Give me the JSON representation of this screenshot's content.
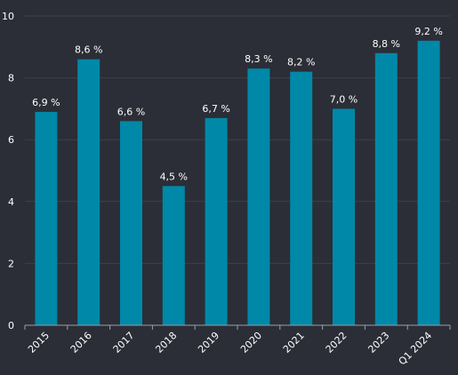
{
  "chart_data": {
    "type": "bar",
    "categories": [
      "2015",
      "2016",
      "2017",
      "2018",
      "2019",
      "2020",
      "2021",
      "2022",
      "2023",
      "Q1 2024"
    ],
    "values": [
      6.9,
      8.6,
      6.6,
      4.5,
      6.7,
      8.3,
      8.2,
      7.0,
      8.8,
      9.2
    ],
    "data_labels": [
      "6,9 %",
      "8,6 %",
      "6,6 %",
      "4,5 %",
      "6,7 %",
      "8,3 %",
      "8,2 %",
      "7,0 %",
      "8,8 %",
      "9,2 %"
    ],
    "yticks": [
      0,
      2,
      4,
      6,
      8,
      10
    ],
    "ylim": [
      0,
      10
    ],
    "grid": true,
    "legend": "none",
    "colors": {
      "bar": "#0088a8",
      "background": "#2b2e36",
      "grid": "#3d414a",
      "axis": "#9aa0a8",
      "text": "#ffffff"
    }
  }
}
